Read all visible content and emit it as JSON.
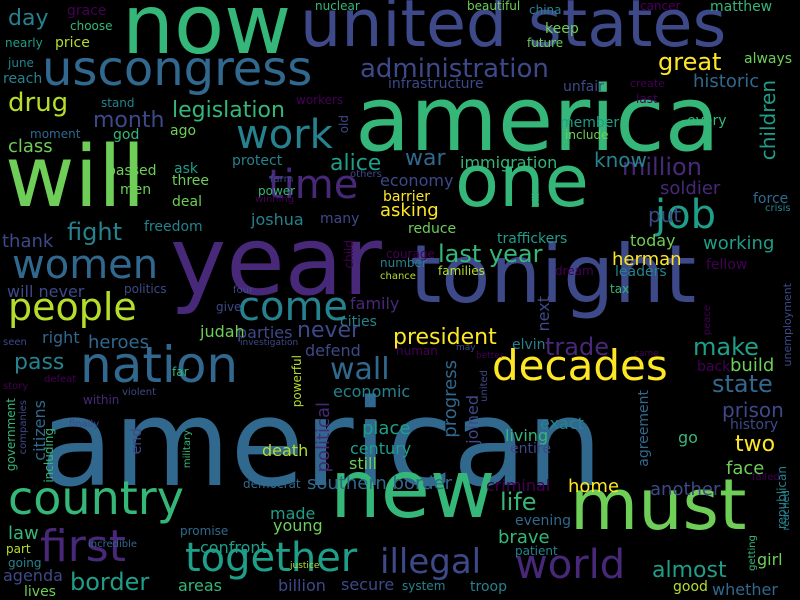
{
  "palette": {
    "background": "#000000",
    "colors": [
      "#440154",
      "#482878",
      "#3e4989",
      "#31688e",
      "#26828e",
      "#1f9e89",
      "#35b779",
      "#6ece58",
      "#b5de2b",
      "#fde725"
    ]
  },
  "words": [
    {
      "text": "american",
      "color": "#31688e"
    },
    {
      "text": "america",
      "color": "#35b779"
    },
    {
      "text": "year",
      "color": "#482878"
    },
    {
      "text": "tonight",
      "color": "#3e4989"
    },
    {
      "text": "will",
      "color": "#6ece58"
    },
    {
      "text": "one",
      "color": "#35b779"
    },
    {
      "text": "now",
      "color": "#35b779"
    },
    {
      "text": "new",
      "color": "#35b779"
    },
    {
      "text": "must",
      "color": "#6ece58"
    },
    {
      "text": "united states",
      "color": "#3e4989"
    },
    {
      "text": "uscongress",
      "color": "#31688e"
    },
    {
      "text": "nation",
      "color": "#31688e"
    },
    {
      "text": "decades",
      "color": "#fde725"
    },
    {
      "text": "country",
      "color": "#35b779"
    },
    {
      "text": "world",
      "color": "#482878"
    },
    {
      "text": "first",
      "color": "#482878"
    },
    {
      "text": "together",
      "color": "#1f9e89"
    },
    {
      "text": "people",
      "color": "#b5de2b"
    },
    {
      "text": "women",
      "color": "#31688e"
    },
    {
      "text": "come",
      "color": "#26828e"
    },
    {
      "text": "time",
      "color": "#482878"
    },
    {
      "text": "work",
      "color": "#26828e"
    },
    {
      "text": "job",
      "color": "#1f9e89"
    },
    {
      "text": "illegal",
      "color": "#3e4989"
    },
    {
      "text": "administration",
      "color": "#3e4989"
    },
    {
      "text": "great",
      "color": "#fde725"
    },
    {
      "text": "historic",
      "color": "#31688e"
    },
    {
      "text": "drug",
      "color": "#b5de2b"
    },
    {
      "text": "month",
      "color": "#3e4989"
    },
    {
      "text": "legislation",
      "color": "#35b779"
    },
    {
      "text": "million",
      "color": "#482878"
    },
    {
      "text": "last year",
      "color": "#35b779"
    },
    {
      "text": "fight",
      "color": "#26828e"
    },
    {
      "text": "wall",
      "color": "#31688e"
    },
    {
      "text": "trade",
      "color": "#482878"
    },
    {
      "text": "make",
      "color": "#1f9e89"
    },
    {
      "text": "state",
      "color": "#31688e"
    },
    {
      "text": "border",
      "color": "#1f9e89"
    },
    {
      "text": "life",
      "color": "#35b779"
    },
    {
      "text": "almost",
      "color": "#1f9e89"
    },
    {
      "text": "president",
      "color": "#fde725"
    },
    {
      "text": "never",
      "color": "#3e4989"
    },
    {
      "text": "pass",
      "color": "#26828e"
    },
    {
      "text": "war",
      "color": "#31688e"
    },
    {
      "text": "children",
      "color": "#1f9e89"
    },
    {
      "text": "prison",
      "color": "#3e4989"
    },
    {
      "text": "two",
      "color": "#fde725"
    },
    {
      "text": "alice",
      "color": "#1f9e89"
    },
    {
      "text": "soldier",
      "color": "#482878"
    },
    {
      "text": "know",
      "color": "#26828e"
    },
    {
      "text": "economy",
      "color": "#3e4989"
    },
    {
      "text": "immigration",
      "color": "#35b779"
    },
    {
      "text": "asking",
      "color": "#fde725"
    },
    {
      "text": "put",
      "color": "#3e4989"
    },
    {
      "text": "working",
      "color": "#1f9e89"
    },
    {
      "text": "herman",
      "color": "#fde725"
    },
    {
      "text": "southern border",
      "color": "#31688e"
    },
    {
      "text": "home",
      "color": "#fde725"
    },
    {
      "text": "another",
      "color": "#3e4989"
    },
    {
      "text": "brave",
      "color": "#35b779"
    },
    {
      "text": "century",
      "color": "#1f9e89"
    },
    {
      "text": "place",
      "color": "#1f9e89"
    },
    {
      "text": "progress",
      "color": "#31688e"
    },
    {
      "text": "joined",
      "color": "#3e4989"
    },
    {
      "text": "living",
      "color": "#35b779"
    },
    {
      "text": "citizens",
      "color": "#31688e"
    },
    {
      "text": "heroes",
      "color": "#31688e"
    },
    {
      "text": "right",
      "color": "#31688e"
    },
    {
      "text": "parties",
      "color": "#3e4989"
    },
    {
      "text": "defend",
      "color": "#3e4989"
    },
    {
      "text": "family",
      "color": "#482878"
    },
    {
      "text": "law",
      "color": "#35b779"
    },
    {
      "text": "day",
      "color": "#26828e"
    },
    {
      "text": "class",
      "color": "#6ece58"
    },
    {
      "text": "thank",
      "color": "#3e4989"
    },
    {
      "text": "will never",
      "color": "#3e4989"
    },
    {
      "text": "made",
      "color": "#1f9e89"
    },
    {
      "text": "young",
      "color": "#6ece58"
    },
    {
      "text": "confront",
      "color": "#1f9e89"
    },
    {
      "text": "secure",
      "color": "#3e4989"
    },
    {
      "text": "billion",
      "color": "#3e4989"
    },
    {
      "text": "areas",
      "color": "#35b779"
    },
    {
      "text": "agenda",
      "color": "#3e4989"
    },
    {
      "text": "lives",
      "color": "#6ece58"
    },
    {
      "text": "whether",
      "color": "#31688e"
    },
    {
      "text": "face",
      "color": "#6ece58"
    },
    {
      "text": "build",
      "color": "#6ece58"
    },
    {
      "text": "reduce",
      "color": "#6ece58"
    },
    {
      "text": "traffickers",
      "color": "#1f9e89"
    },
    {
      "text": "today",
      "color": "#6ece58"
    },
    {
      "text": "barrier",
      "color": "#fde725"
    },
    {
      "text": "protect",
      "color": "#26828e"
    },
    {
      "text": "freedom",
      "color": "#26828e"
    },
    {
      "text": "three",
      "color": "#6ece58"
    },
    {
      "text": "deal",
      "color": "#6ece58"
    },
    {
      "text": "ask",
      "color": "#1f9e89"
    },
    {
      "text": "men",
      "color": "#6ece58"
    },
    {
      "text": "passed",
      "color": "#6ece58"
    },
    {
      "text": "god",
      "color": "#35b779"
    },
    {
      "text": "ago",
      "color": "#6ece58"
    },
    {
      "text": "moment",
      "color": "#31688e"
    },
    {
      "text": "price",
      "color": "#b5de2b"
    },
    {
      "text": "nearly",
      "color": "#1f9e89"
    },
    {
      "text": "grace",
      "color": "#440154"
    },
    {
      "text": "choose",
      "color": "#35b779"
    },
    {
      "text": "nuclear",
      "color": "#35b779"
    },
    {
      "text": "beautiful",
      "color": "#6ece58"
    },
    {
      "text": "china",
      "color": "#26828e"
    },
    {
      "text": "cancer",
      "color": "#440154"
    },
    {
      "text": "matthew",
      "color": "#35b779"
    },
    {
      "text": "keep",
      "color": "#6ece58"
    },
    {
      "text": "future",
      "color": "#6ece58"
    },
    {
      "text": "always",
      "color": "#6ece58"
    },
    {
      "text": "create",
      "color": "#440154"
    },
    {
      "text": "unfair",
      "color": "#3e4989"
    },
    {
      "text": "infrastructure",
      "color": "#3e4989"
    },
    {
      "text": "member",
      "color": "#1f9e89"
    },
    {
      "text": "include",
      "color": "#6ece58"
    },
    {
      "text": "every",
      "color": "#35b779"
    },
    {
      "text": "last",
      "color": "#440154"
    },
    {
      "text": "stand",
      "color": "#26828e"
    },
    {
      "text": "june",
      "color": "#26828e"
    },
    {
      "text": "reach",
      "color": "#26828e"
    },
    {
      "text": "joshua",
      "color": "#26828e"
    },
    {
      "text": "many",
      "color": "#3e4989"
    },
    {
      "text": "judah",
      "color": "#6ece58"
    },
    {
      "text": "politics",
      "color": "#3e4989"
    },
    {
      "text": "give",
      "color": "#3e4989"
    },
    {
      "text": "cities",
      "color": "#26828e"
    },
    {
      "text": "economic",
      "color": "#26828e"
    },
    {
      "text": "still",
      "color": "#6ece58"
    },
    {
      "text": "death",
      "color": "#b5de2b"
    },
    {
      "text": "political",
      "color": "#482878"
    },
    {
      "text": "criminal",
      "color": "#440154"
    },
    {
      "text": "evening",
      "color": "#31688e"
    },
    {
      "text": "patient",
      "color": "#26828e"
    },
    {
      "text": "girl",
      "color": "#6ece58"
    },
    {
      "text": "exact",
      "color": "#26828e"
    },
    {
      "text": "entire",
      "color": "#3e4989"
    },
    {
      "text": "go",
      "color": "#35b779"
    },
    {
      "text": "agreement",
      "color": "#31688e"
    },
    {
      "text": "history",
      "color": "#3e4989"
    },
    {
      "text": "next",
      "color": "#3e4989"
    },
    {
      "text": "elvin",
      "color": "#26828e"
    },
    {
      "text": "human",
      "color": "#440154"
    },
    {
      "text": "cancer",
      "color": "#440154"
    },
    {
      "text": "fellow",
      "color": "#440154"
    },
    {
      "text": "leaders",
      "color": "#26828e"
    },
    {
      "text": "dream",
      "color": "#440154"
    },
    {
      "text": "number",
      "color": "#26828e"
    },
    {
      "text": "courage",
      "color": "#440154"
    },
    {
      "text": "families",
      "color": "#b5de2b"
    },
    {
      "text": "chance",
      "color": "#b5de2b"
    },
    {
      "text": "tax",
      "color": "#35b779"
    },
    {
      "text": "force",
      "color": "#31688e"
    },
    {
      "text": "crisis",
      "color": "#26828e"
    },
    {
      "text": "workers",
      "color": "#440154"
    },
    {
      "text": "old",
      "color": "#3e4989"
    },
    {
      "text": "farm",
      "color": "#3e4989"
    },
    {
      "text": "power",
      "color": "#35b779"
    },
    {
      "text": "winning",
      "color": "#440154"
    },
    {
      "text": "others",
      "color": "#3e4989"
    },
    {
      "text": "child",
      "color": "#440154"
    },
    {
      "text": "bill",
      "color": "#35b779"
    },
    {
      "text": "seen",
      "color": "#3e4989"
    },
    {
      "text": "investigation",
      "color": "#3e4989"
    },
    {
      "text": "four",
      "color": "#3e4989"
    },
    {
      "text": "far",
      "color": "#35b779"
    },
    {
      "text": "within",
      "color": "#482878"
    },
    {
      "text": "violent",
      "color": "#3e4989"
    },
    {
      "text": "story",
      "color": "#440154"
    },
    {
      "text": "defeat",
      "color": "#440154"
    },
    {
      "text": "government",
      "color": "#35b779"
    },
    {
      "text": "companies",
      "color": "#3e4989"
    },
    {
      "text": "finally",
      "color": "#3e4989"
    },
    {
      "text": "including",
      "color": "#35b779"
    },
    {
      "text": "part",
      "color": "#b5de2b"
    },
    {
      "text": "going",
      "color": "#26828e"
    },
    {
      "text": "incredible",
      "color": "#31688e"
    },
    {
      "text": "promise",
      "color": "#31688e"
    },
    {
      "text": "military",
      "color": "#35b779"
    },
    {
      "text": "powerful",
      "color": "#b5de2b"
    },
    {
      "text": "democrat",
      "color": "#31688e"
    },
    {
      "text": "justice",
      "color": "#b5de2b"
    },
    {
      "text": "system",
      "color": "#26828e"
    },
    {
      "text": "troop",
      "color": "#26828e"
    },
    {
      "text": "united",
      "color": "#3e4989"
    },
    {
      "text": "may",
      "color": "#3e4989"
    },
    {
      "text": "better",
      "color": "#440154"
    },
    {
      "text": "came",
      "color": "#440154"
    },
    {
      "text": "back",
      "color": "#440154"
    },
    {
      "text": "peace",
      "color": "#440154"
    },
    {
      "text": "unemployment",
      "color": "#3e4989"
    },
    {
      "text": "republican",
      "color": "#26828e"
    },
    {
      "text": "reached",
      "color": "#26828e"
    },
    {
      "text": "failed",
      "color": "#440154"
    },
    {
      "text": "getting",
      "color": "#35b779"
    },
    {
      "text": "good",
      "color": "#b5de2b"
    },
    {
      "text": "end",
      "color": "#3e4989"
    }
  ]
}
